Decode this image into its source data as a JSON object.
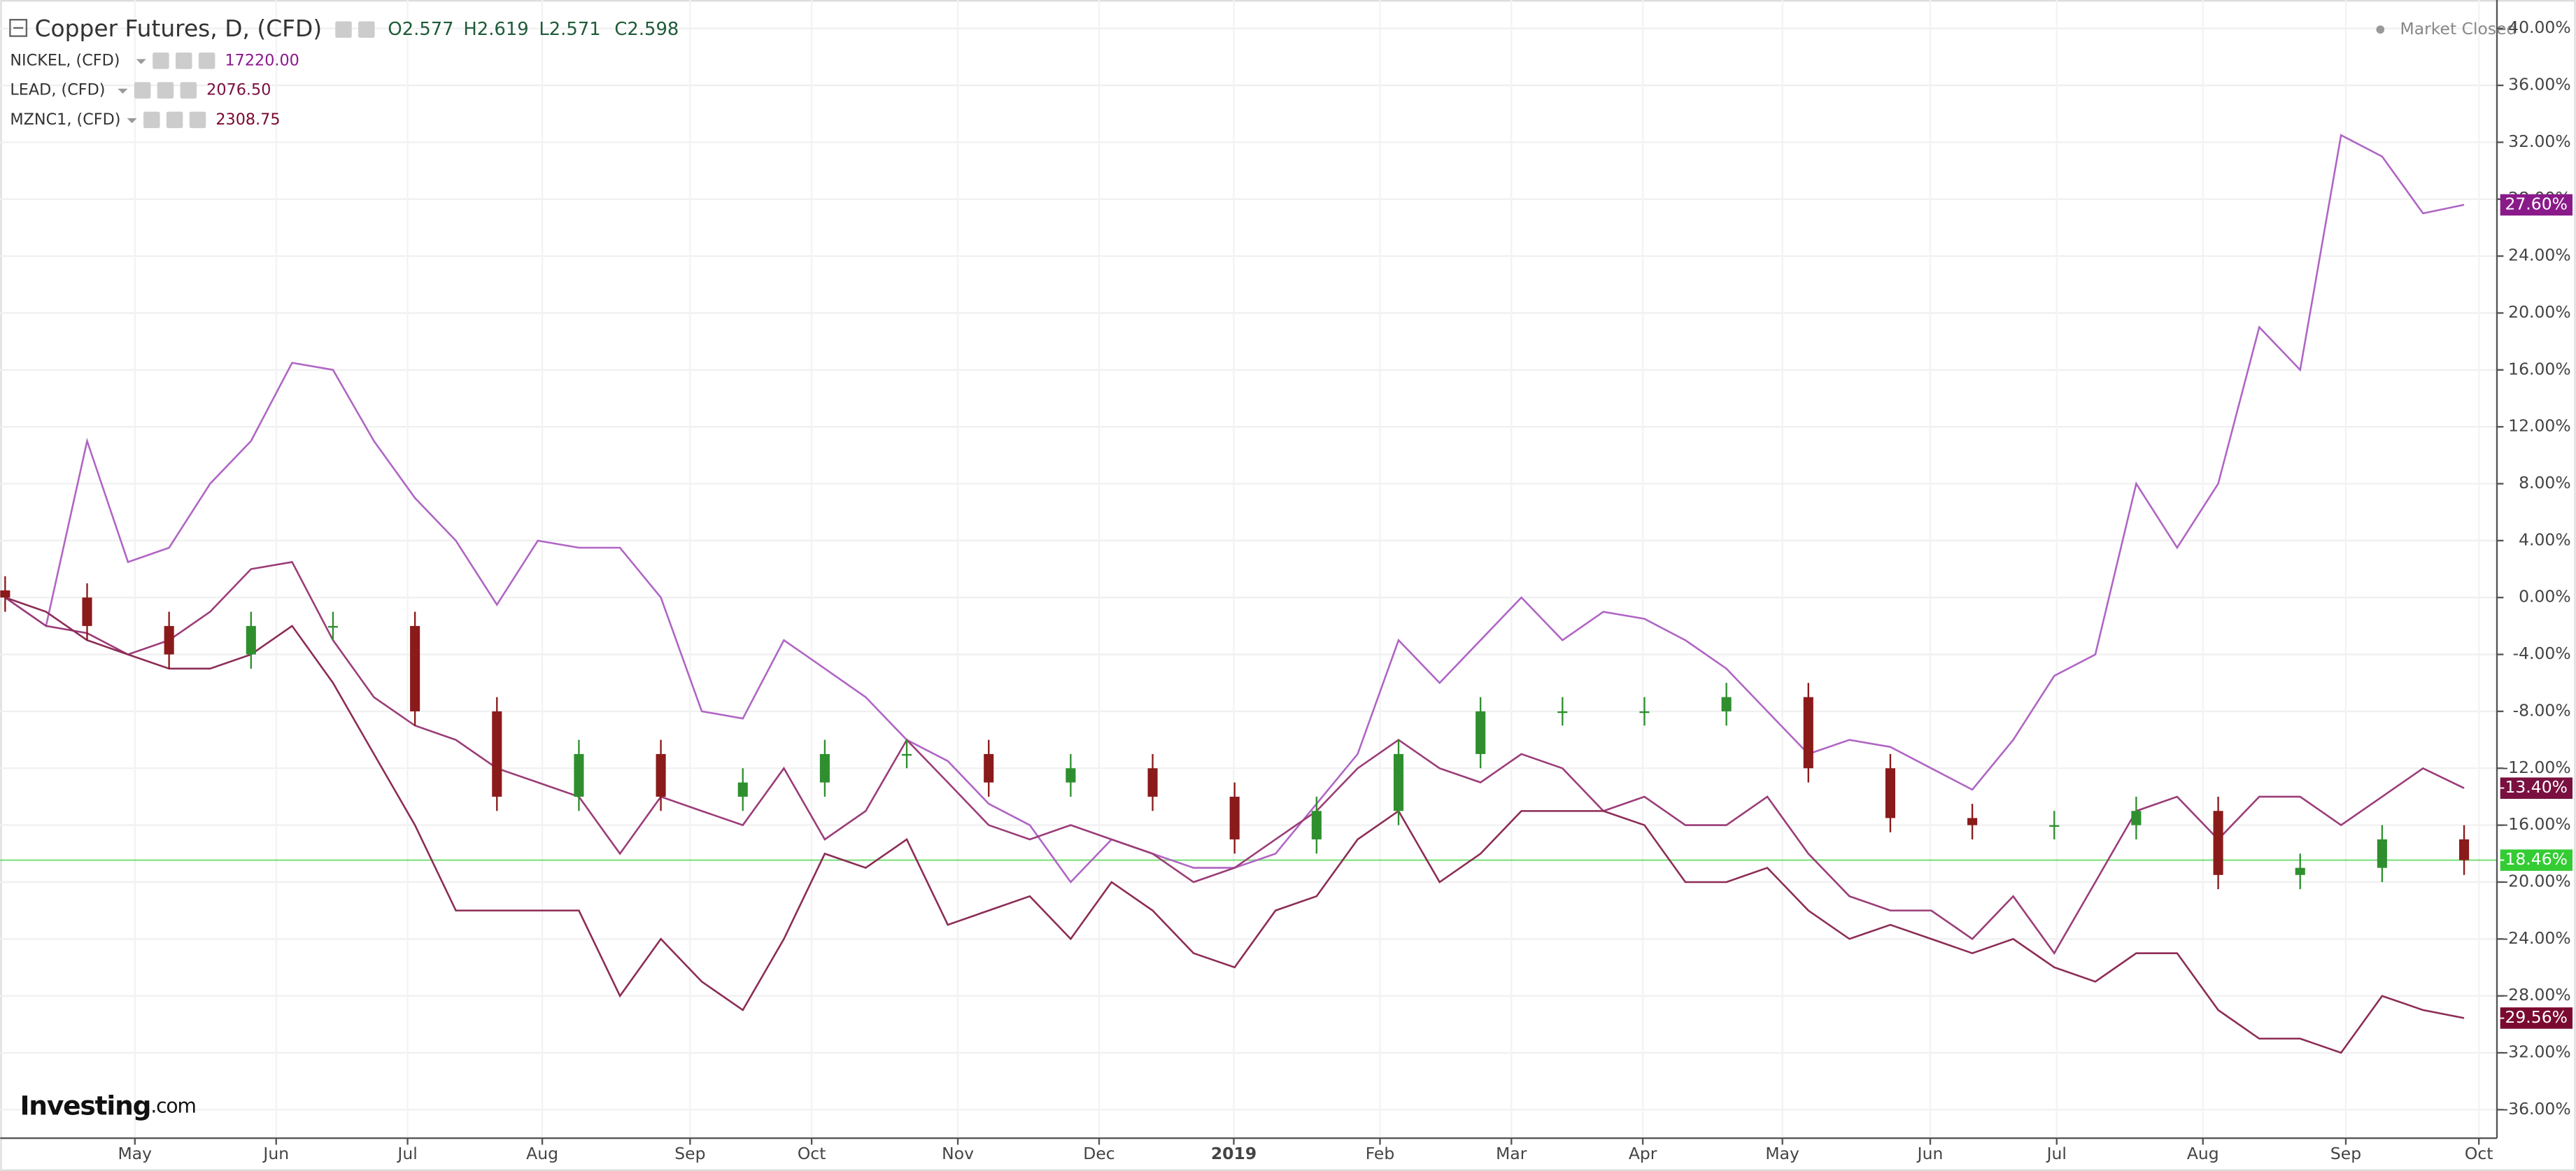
{
  "chart_data": {
    "type": "candlestick",
    "title": "Copper Futures, D, (CFD)",
    "ohlc_labels": [
      "O2.577",
      "H2.619",
      "L2.571",
      "C2.598"
    ],
    "status": "Market Closed",
    "logo": "Investing",
    "logo_suffix": ".com",
    "xlabels": [
      "May",
      "Jun",
      "Jul",
      "Aug",
      "Sep",
      "Oct",
      "Nov",
      "Dec",
      "2019",
      "Feb",
      "Mar",
      "Apr",
      "May",
      "Jun",
      "Jul",
      "Aug",
      "Sep",
      "Oct"
    ],
    "ylim": [
      -38,
      42
    ],
    "yticks": [
      {
        "value": 40,
        "label": "40.00%"
      },
      {
        "value": 36,
        "label": "36.00%"
      },
      {
        "value": 32,
        "label": "32.00%"
      },
      {
        "value": 28,
        "label": "28.00%"
      },
      {
        "value": 24,
        "label": "24.00%"
      },
      {
        "value": 20,
        "label": "20.00%"
      },
      {
        "value": 16,
        "label": "16.00%"
      },
      {
        "value": 12,
        "label": "12.00%"
      },
      {
        "value": 8,
        "label": "8.00%"
      },
      {
        "value": 4,
        "label": "4.00%"
      },
      {
        "value": 0,
        "label": "0.00%"
      },
      {
        "value": -4,
        "label": "-4.00%"
      },
      {
        "value": -8,
        "label": "-8.00%"
      },
      {
        "value": -12,
        "label": "-12.00%"
      },
      {
        "value": -16,
        "label": "-16.00%"
      },
      {
        "value": -20,
        "label": "-20.00%"
      },
      {
        "value": -24,
        "label": "-24.00%"
      },
      {
        "value": -28,
        "label": "-28.00%"
      },
      {
        "value": -32,
        "label": "-32.00%"
      },
      {
        "value": -36,
        "label": "-36.00%"
      }
    ],
    "grid": true,
    "candles": {
      "up_color": "#2f8f2f",
      "down_color": "#8b1a1a",
      "last_value": -18.46,
      "last_label": "-18.46%",
      "last_color": "#33cc33",
      "open": [
        0.5,
        0,
        -2,
        -4,
        -2,
        -2,
        -8,
        -14,
        -11,
        -14,
        -13,
        -11,
        -11,
        -13,
        -12,
        -14,
        -17,
        -15,
        -11,
        -8,
        -8,
        -8,
        -7,
        -12,
        -15.5,
        -16,
        -16,
        -15,
        -19.5,
        -19,
        -17
      ],
      "high": [
        1.5,
        1,
        -1,
        -1,
        -1,
        -1,
        -7,
        -10,
        -10,
        -12,
        -10,
        -10,
        -10,
        -11,
        -11,
        -13,
        -14,
        -10,
        -7,
        -7,
        -7,
        -6,
        -6,
        -11,
        -14.5,
        -15,
        -14,
        -14,
        -18,
        -16,
        -16
      ],
      "low": [
        -1,
        -3,
        -5,
        -5,
        -3,
        -9,
        -15,
        -15,
        -15,
        -15,
        -14,
        -12,
        -14,
        -14,
        -15,
        -18,
        -18,
        -16,
        -12,
        -9,
        -9,
        -9,
        -13,
        -16.5,
        -17,
        -17,
        -17,
        -20.5,
        -20.5,
        -20,
        -19.5
      ],
      "close": [
        0,
        -2,
        -4,
        -2,
        -2,
        -8,
        -14,
        -11,
        -14,
        -13,
        -11,
        -11,
        -13,
        -12,
        -14,
        -17,
        -15,
        -11,
        -8,
        -8,
        -8,
        -7,
        -12,
        -15.5,
        -16,
        -16,
        -15,
        -19.5,
        -19,
        -17,
        -18.46
      ]
    },
    "series": [
      {
        "name": "NICKEL, (CFD)",
        "price": "17220.00",
        "color": "#b065c4",
        "badge_color": "#8a1a8a",
        "last_label": "27.60%",
        "values": [
          0,
          -2,
          11,
          2.5,
          3.5,
          8,
          11,
          16.5,
          16,
          11,
          7,
          4,
          -0.5,
          4,
          3.5,
          3.5,
          0,
          -8,
          -8.5,
          -3,
          -5,
          -7,
          -10,
          -11.5,
          -14.5,
          -16,
          -20,
          -17,
          -18,
          -19,
          -19,
          -18,
          -14.5,
          -11,
          -3,
          -6,
          -3,
          0,
          -3,
          -1,
          -1.5,
          -3,
          -5,
          -8,
          -11,
          -10,
          -10.5,
          -12,
          -13.5,
          -10,
          -5.5,
          -4,
          8,
          3.5,
          8,
          19,
          16,
          32.5,
          31,
          27,
          27.6
        ]
      },
      {
        "name": "LEAD, (CFD)",
        "price": "2076.50",
        "color": "#9b3c78",
        "badge_color": "#7a1040",
        "last_label": "-13.40%",
        "values": [
          0,
          -2,
          -2.5,
          -4,
          -3,
          -1,
          2,
          2.5,
          -3,
          -7,
          -9,
          -10,
          -12,
          -13,
          -14,
          -18,
          -14,
          -15,
          -16,
          -12,
          -17,
          -15,
          -10,
          -13,
          -16,
          -17,
          -16,
          -17,
          -18,
          -20,
          -19,
          -17,
          -15,
          -12,
          -10,
          -12,
          -13,
          -11,
          -12,
          -15,
          -14,
          -16,
          -16,
          -14,
          -18,
          -21,
          -22,
          -22,
          -24,
          -21,
          -25,
          -20,
          -15,
          -14,
          -17,
          -14,
          -14,
          -16,
          -14,
          -12,
          -13.4
        ]
      },
      {
        "name": "MZNC1, (CFD)",
        "price": "2308.75",
        "color": "#8c2c55",
        "badge_color": "#7a0a30",
        "last_label": "-29.56%",
        "values": [
          0,
          -1,
          -3,
          -4,
          -5,
          -5,
          -4,
          -2,
          -6,
          -11,
          -16,
          -22,
          -22,
          -22,
          -22,
          -28,
          -24,
          -27,
          -29,
          -24,
          -18,
          -19,
          -17,
          -23,
          -22,
          -21,
          -24,
          -20,
          -22,
          -25,
          -26,
          -22,
          -21,
          -17,
          -15,
          -20,
          -18,
          -15,
          -15,
          -15,
          -16,
          -20,
          -20,
          -19,
          -22,
          -24,
          -23,
          -24,
          -25,
          -24,
          -26,
          -27,
          -25,
          -25,
          -29,
          -31,
          -31,
          -32,
          -28,
          -29,
          -29.56
        ]
      }
    ]
  }
}
